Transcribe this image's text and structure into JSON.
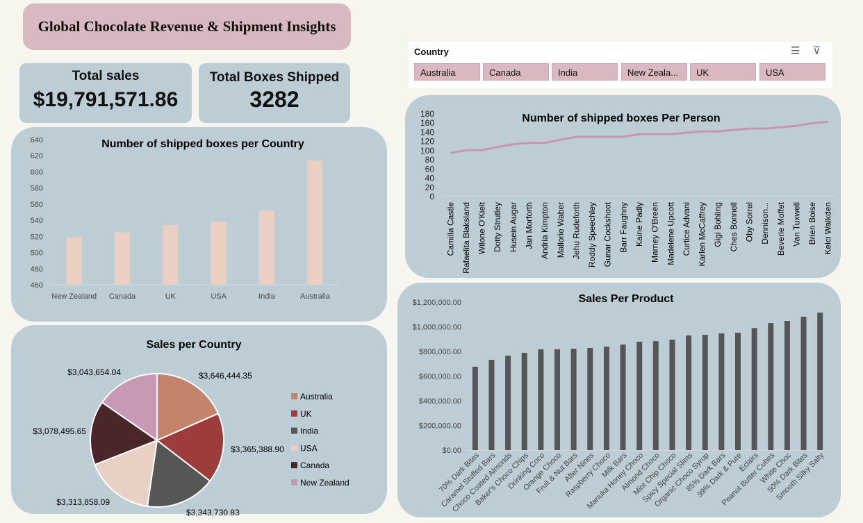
{
  "title": "Global Chocolate Revenue & Shipment Insights",
  "kpis": {
    "sales_label": "Total sales",
    "sales_value": "$19,791,571.86",
    "boxes_label": "Total Boxes Shipped",
    "boxes_value": "3282"
  },
  "slicer": {
    "header": "Country",
    "items": [
      "Australia",
      "Canada",
      "India",
      "New Zeala...",
      "UK",
      "USA"
    ],
    "icons": [
      "multi-select-icon",
      "clear-filter-icon"
    ]
  },
  "colors": {
    "panel": "#bccdd5",
    "accent_pink": "#d8b8c1",
    "bar": "#ebcfc2",
    "line": "#c994b3",
    "product_bar": "#555555"
  },
  "chart_data": [
    {
      "type": "bar",
      "title": "Number of shipped boxes per Country",
      "categories": [
        "New Zealand",
        "Canada",
        "UK",
        "USA",
        "India",
        "Australia"
      ],
      "values": [
        519,
        525,
        534,
        538,
        552,
        614
      ],
      "ylim": [
        460,
        640
      ],
      "yticks": [
        460,
        480,
        500,
        520,
        540,
        560,
        580,
        600,
        620,
        640
      ],
      "grid": false
    },
    {
      "type": "pie",
      "title": "Sales per Country",
      "categories": [
        "Australia",
        "UK",
        "India",
        "USA",
        "Canada",
        "New Zealand"
      ],
      "values": [
        3646444.35,
        3365388.9,
        3343730.83,
        3313858.09,
        3078495.65,
        3043654.04
      ],
      "labels": [
        "$3,646,444.35",
        "$3,365,388.90",
        "$3,343,730.83",
        "$3,313,858.09",
        "$3,078,495.65",
        "$3,043,654.04"
      ],
      "colors": [
        "#c4836b",
        "#9c3c3b",
        "#565656",
        "#e9d0c4",
        "#4a2629",
        "#c799b5"
      ],
      "legend": "right"
    },
    {
      "type": "line",
      "title": "Number of shipped boxes Per Person",
      "categories": [
        "Camilla Castle",
        "Rafaelita Blaksland",
        "Wilone O'Kielt",
        "Dotty Strutley",
        "Husein Augar",
        "Jan Morforth",
        "Andria Kimpton",
        "Mallorie Waber",
        "Jehu Rudeforth",
        "Roddy Speechley",
        "Gunar Cockshoot",
        "Barr Faughny",
        "Kaine Padly",
        "Marney O'Breen",
        "Madelene Upcott",
        "Curtice Advani",
        "Karlen McCaffrey",
        "Gigi Bohling",
        "Ches Bonnell",
        "Oby Sorrel",
        "Dennison...",
        "Beverie Moffet",
        "Van Tuxwell",
        "Brien Boise",
        "Kelci Walkden"
      ],
      "values": [
        95,
        101,
        101,
        108,
        114,
        117,
        117,
        124,
        130,
        130,
        130,
        130,
        136,
        136,
        136,
        139,
        142,
        142,
        145,
        148,
        148,
        151,
        154,
        160,
        163
      ],
      "ylim": [
        0,
        180
      ],
      "yticks": [
        0,
        20,
        40,
        60,
        80,
        100,
        120,
        140,
        160,
        180
      ],
      "grid": false
    },
    {
      "type": "bar",
      "title": "Sales Per Product",
      "categories": [
        "70% Dark Bites",
        "Caramel Stuffed Bars",
        "Choco Coated Almonds",
        "Baker's Choco Chips",
        "Drinking Coco",
        "Orange Choco",
        "Fruit & Nut Bars",
        "After Nines",
        "Raspberry Choco",
        "Milk Bars",
        "Manuka Honey Choco",
        "Almond Choco",
        "Mint Chip Choco",
        "Spicy Special Slims",
        "Organic Choco Syrup",
        "85% Dark Bars",
        "99% Dark & Pure",
        "Eclairs",
        "Peanut Butter Cubes",
        "White Choc",
        "50% Dark Bites",
        "Smooth Silky Salty"
      ],
      "values": [
        676000,
        732000,
        766000,
        789000,
        817000,
        818000,
        822000,
        828000,
        839000,
        856000,
        879000,
        884000,
        896000,
        930000,
        935000,
        946000,
        952000,
        990000,
        1030000,
        1048000,
        1082000,
        1115000
      ],
      "ylim": [
        0,
        1200000
      ],
      "yticks": [
        "$0.00",
        "$200,000.00",
        "$400,000.00",
        "$600,000.00",
        "$800,000.00",
        "$1,000,000.00",
        "$1,200,000.00"
      ],
      "grid": false
    }
  ]
}
